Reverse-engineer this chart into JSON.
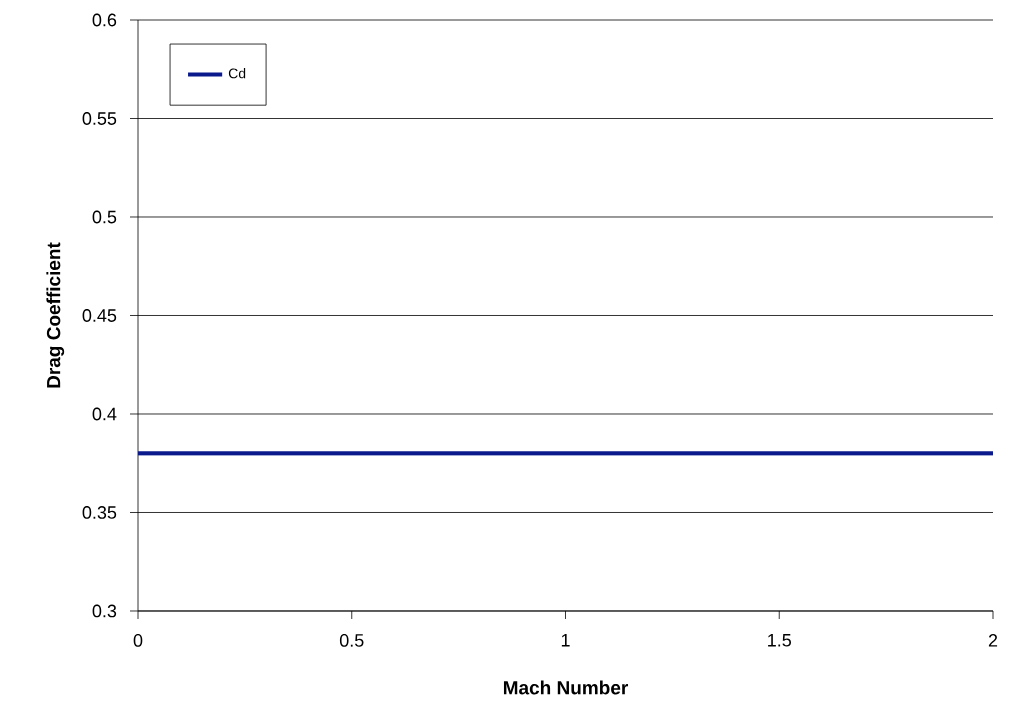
{
  "chart_data": {
    "type": "line",
    "xlabel": "Mach Number",
    "ylabel": "Drag Coefficient",
    "series": [
      {
        "name": "Cd",
        "color": "#0a1a8c",
        "x": [
          0,
          2
        ],
        "values": [
          0.38,
          0.38
        ]
      }
    ],
    "xlim": [
      0,
      2
    ],
    "ylim": [
      0.3,
      0.6
    ],
    "xticks": [
      0,
      0.5,
      1,
      1.5,
      2
    ],
    "yticks": [
      0.3,
      0.35,
      0.4,
      0.45,
      0.5,
      0.55,
      0.6
    ],
    "grid": "y",
    "legend": "top left",
    "marker": "none",
    "line_style": "solid"
  }
}
